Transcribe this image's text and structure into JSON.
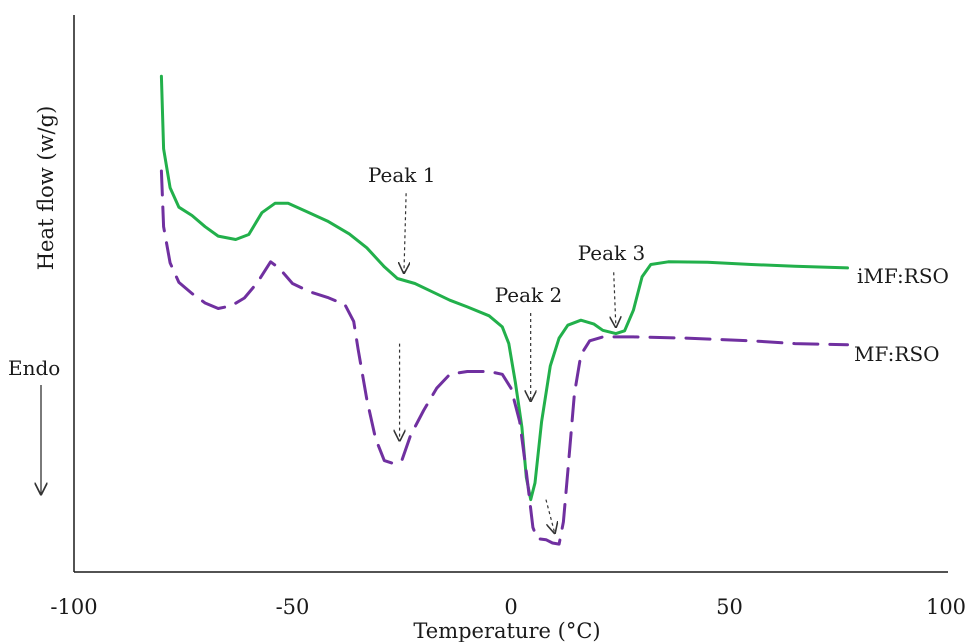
{
  "chart_data": {
    "type": "line",
    "xlabel": "Temperature (°C)",
    "ylabel": "Heat flow (w/g)",
    "xlim": [
      -100,
      100
    ],
    "ylim": [
      0,
      1
    ],
    "x_ticks": [
      -100,
      -50,
      0,
      50,
      100
    ],
    "grid": false,
    "endo_label": "Endo",
    "series": [
      {
        "name": "iMF:RSO",
        "color": "#22b04b",
        "dash": "solid",
        "points": [
          [
            -80,
            0.89
          ],
          [
            -79.5,
            0.76
          ],
          [
            -78,
            0.69
          ],
          [
            -76,
            0.655
          ],
          [
            -73,
            0.64
          ],
          [
            -70,
            0.62
          ],
          [
            -67,
            0.603
          ],
          [
            -63,
            0.597
          ],
          [
            -60,
            0.606
          ],
          [
            -57,
            0.645
          ],
          [
            -54,
            0.662
          ],
          [
            -51,
            0.662
          ],
          [
            -47,
            0.648
          ],
          [
            -42,
            0.63
          ],
          [
            -37,
            0.607
          ],
          [
            -33,
            0.582
          ],
          [
            -29,
            0.548
          ],
          [
            -26,
            0.527
          ],
          [
            -22,
            0.518
          ],
          [
            -18,
            0.503
          ],
          [
            -14,
            0.488
          ],
          [
            -10,
            0.476
          ],
          [
            -5,
            0.46
          ],
          [
            -2,
            0.44
          ],
          [
            -0.5,
            0.41
          ],
          [
            1,
            0.34
          ],
          [
            2.5,
            0.26
          ],
          [
            3.5,
            0.17
          ],
          [
            4.5,
            0.13
          ],
          [
            5.5,
            0.16
          ],
          [
            7,
            0.27
          ],
          [
            9,
            0.37
          ],
          [
            11,
            0.42
          ],
          [
            13,
            0.443
          ],
          [
            16,
            0.452
          ],
          [
            19,
            0.445
          ],
          [
            21,
            0.434
          ],
          [
            24,
            0.428
          ],
          [
            26,
            0.433
          ],
          [
            28,
            0.47
          ],
          [
            30,
            0.53
          ],
          [
            32,
            0.552
          ],
          [
            36,
            0.557
          ],
          [
            45,
            0.556
          ],
          [
            55,
            0.552
          ],
          [
            65,
            0.549
          ],
          [
            77,
            0.546
          ]
        ]
      },
      {
        "name": "MF:RSO",
        "color": "#7030a0",
        "dash": "dashed",
        "points": [
          [
            -80,
            0.72
          ],
          [
            -79.5,
            0.62
          ],
          [
            -78,
            0.555
          ],
          [
            -76,
            0.52
          ],
          [
            -73,
            0.5
          ],
          [
            -70,
            0.483
          ],
          [
            -67,
            0.473
          ],
          [
            -64,
            0.478
          ],
          [
            -61,
            0.492
          ],
          [
            -58,
            0.52
          ],
          [
            -55,
            0.557
          ],
          [
            -53,
            0.545
          ],
          [
            -50,
            0.518
          ],
          [
            -46,
            0.503
          ],
          [
            -42,
            0.493
          ],
          [
            -38,
            0.48
          ],
          [
            -36,
            0.45
          ],
          [
            -35,
            0.4
          ],
          [
            -33,
            0.31
          ],
          [
            -31,
            0.24
          ],
          [
            -29,
            0.2
          ],
          [
            -27,
            0.195
          ],
          [
            -25,
            0.2
          ],
          [
            -23,
            0.245
          ],
          [
            -20,
            0.29
          ],
          [
            -17,
            0.33
          ],
          [
            -14,
            0.355
          ],
          [
            -10,
            0.36
          ],
          [
            -5,
            0.36
          ],
          [
            -2,
            0.355
          ],
          [
            0,
            0.33
          ],
          [
            2,
            0.27
          ],
          [
            3.5,
            0.18
          ],
          [
            5,
            0.08
          ],
          [
            6,
            0.06
          ],
          [
            8,
            0.058
          ],
          [
            9.5,
            0.052
          ],
          [
            11,
            0.05
          ],
          [
            12,
            0.09
          ],
          [
            13,
            0.18
          ],
          [
            14.5,
            0.32
          ],
          [
            16,
            0.39
          ],
          [
            18,
            0.415
          ],
          [
            21,
            0.422
          ],
          [
            28,
            0.422
          ],
          [
            40,
            0.42
          ],
          [
            55,
            0.415
          ],
          [
            65,
            0.41
          ],
          [
            77,
            0.408
          ]
        ]
      }
    ],
    "annotations": [
      {
        "text": "Peak 1",
        "label_x": -25,
        "label_y": 0.7,
        "arrow_from": [
          -24,
          0.68
        ],
        "arrow_to": [
          -24.5,
          0.537
        ]
      },
      {
        "text": "Peak 2",
        "label_x": 4,
        "label_y": 0.485,
        "arrow_from": [
          4.5,
          0.465
        ],
        "arrow_to": [
          4.5,
          0.307
        ]
      },
      {
        "text": "Peak 3",
        "label_x": 23,
        "label_y": 0.56,
        "arrow_from": [
          23.5,
          0.538
        ],
        "arrow_to": [
          24,
          0.44
        ]
      },
      {
        "text": "",
        "arrow_from": [
          -25.5,
          0.41
        ],
        "arrow_to": [
          -25.5,
          0.236
        ]
      },
      {
        "text": "",
        "arrow_from": [
          8,
          0.13
        ],
        "arrow_to": [
          10,
          0.07
        ]
      }
    ]
  }
}
